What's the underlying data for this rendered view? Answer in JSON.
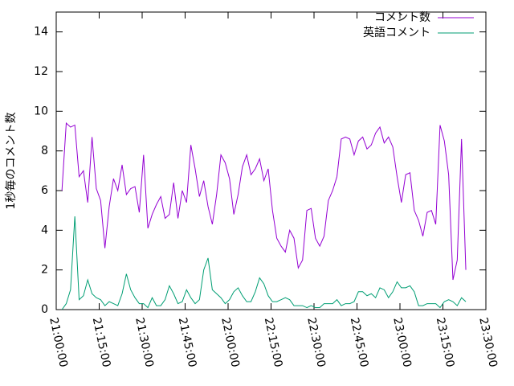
{
  "chart_data": {
    "type": "line",
    "ylabel": "1秒毎のコメント数",
    "legend": "top-right",
    "xlim": [
      "21:00:00",
      "23:30:00"
    ],
    "xticks": [
      "21:00:00",
      "21:15:00",
      "21:30:00",
      "21:45:00",
      "22:00:00",
      "22:15:00",
      "22:30:00",
      "22:45:00",
      "23:00:00",
      "23:15:00",
      "23:30:00"
    ],
    "ylim": [
      0,
      15
    ],
    "yticks": [
      0,
      2,
      4,
      6,
      8,
      10,
      12,
      14
    ],
    "x": [
      "21:02:00",
      "21:03:30",
      "21:05:00",
      "21:06:30",
      "21:08:00",
      "21:09:30",
      "21:11:00",
      "21:12:30",
      "21:14:00",
      "21:15:30",
      "21:17:00",
      "21:18:30",
      "21:20:00",
      "21:21:30",
      "21:23:00",
      "21:24:30",
      "21:26:00",
      "21:27:30",
      "21:29:00",
      "21:30:30",
      "21:32:00",
      "21:33:30",
      "21:35:00",
      "21:36:30",
      "21:38:00",
      "21:39:30",
      "21:41:00",
      "21:42:30",
      "21:44:00",
      "21:45:30",
      "21:47:00",
      "21:48:30",
      "21:50:00",
      "21:51:30",
      "21:53:00",
      "21:54:30",
      "21:56:00",
      "21:57:30",
      "21:59:00",
      "22:00:30",
      "22:02:00",
      "22:03:30",
      "22:05:00",
      "22:06:30",
      "22:08:00",
      "22:09:30",
      "22:11:00",
      "22:12:30",
      "22:14:00",
      "22:15:30",
      "22:17:00",
      "22:18:30",
      "22:20:00",
      "22:21:30",
      "22:23:00",
      "22:24:30",
      "22:26:00",
      "22:27:30",
      "22:29:00",
      "22:30:30",
      "22:32:00",
      "22:33:30",
      "22:35:00",
      "22:36:30",
      "22:38:00",
      "22:39:30",
      "22:41:00",
      "22:42:30",
      "22:44:00",
      "22:45:30",
      "22:47:00",
      "22:48:30",
      "22:50:00",
      "22:51:30",
      "22:53:00",
      "22:54:30",
      "22:56:00",
      "22:57:30",
      "22:59:00",
      "23:00:30",
      "23:02:00",
      "23:03:30",
      "23:05:00",
      "23:06:30",
      "23:08:00",
      "23:09:30",
      "23:11:00",
      "23:12:30",
      "23:14:00",
      "23:15:30",
      "23:17:00",
      "23:18:30",
      "23:20:00",
      "23:21:30",
      "23:23:00"
    ],
    "series": [
      {
        "name": "コメント数",
        "color": "#9400d3",
        "values": [
          6.0,
          9.4,
          9.2,
          9.3,
          6.7,
          7.0,
          5.4,
          8.7,
          6.1,
          5.5,
          3.1,
          5.2,
          6.6,
          6.0,
          7.3,
          5.8,
          6.1,
          6.2,
          4.9,
          7.8,
          4.1,
          4.8,
          5.3,
          5.7,
          4.6,
          4.8,
          6.4,
          4.6,
          6.0,
          5.4,
          8.3,
          7.1,
          5.7,
          6.5,
          5.2,
          4.3,
          5.8,
          7.8,
          7.4,
          6.6,
          4.8,
          5.8,
          7.2,
          7.8,
          6.8,
          7.1,
          7.6,
          6.5,
          7.1,
          5.0,
          3.6,
          3.2,
          2.9,
          4.0,
          3.6,
          2.1,
          2.5,
          5.0,
          5.1,
          3.6,
          3.2,
          3.7,
          5.5,
          6.0,
          6.7,
          8.6,
          8.7,
          8.6,
          7.8,
          8.5,
          8.7,
          8.1,
          8.3,
          8.9,
          9.2,
          8.4,
          8.7,
          8.2,
          6.7,
          5.4,
          6.8,
          6.9,
          5.0,
          4.5,
          3.7,
          4.9,
          5.0,
          4.3,
          9.3,
          8.5,
          6.8,
          1.5,
          2.5,
          8.6,
          2.0
        ]
      },
      {
        "name": "英語コメント",
        "color": "#009e73",
        "values": [
          0,
          0.3,
          1.0,
          4.7,
          0.5,
          0.7,
          1.5,
          0.8,
          0.6,
          0.5,
          0.2,
          0.4,
          0.3,
          0.2,
          0.8,
          1.8,
          1.0,
          0.6,
          0.3,
          0.3,
          0.1,
          0.6,
          0.2,
          0.2,
          0.5,
          1.2,
          0.8,
          0.3,
          0.4,
          1.0,
          0.6,
          0.3,
          0.5,
          2.0,
          2.6,
          1.0,
          0.8,
          0.6,
          0.3,
          0.5,
          0.9,
          1.1,
          0.7,
          0.4,
          0.4,
          0.9,
          1.6,
          1.3,
          0.7,
          0.4,
          0.4,
          0.5,
          0.6,
          0.5,
          0.2,
          0.2,
          0.2,
          0.1,
          0.2,
          0.1,
          0.1,
          0.3,
          0.3,
          0.3,
          0.5,
          0.2,
          0.3,
          0.3,
          0.4,
          0.9,
          0.9,
          0.7,
          0.8,
          0.6,
          1.1,
          1.0,
          0.6,
          0.9,
          1.4,
          1.1,
          1.1,
          1.2,
          0.9,
          0.2,
          0.2,
          0.3,
          0.3,
          0.3,
          0.1,
          0.4,
          0.5,
          0.4,
          0.2,
          0.6,
          0.4
        ]
      }
    ]
  }
}
